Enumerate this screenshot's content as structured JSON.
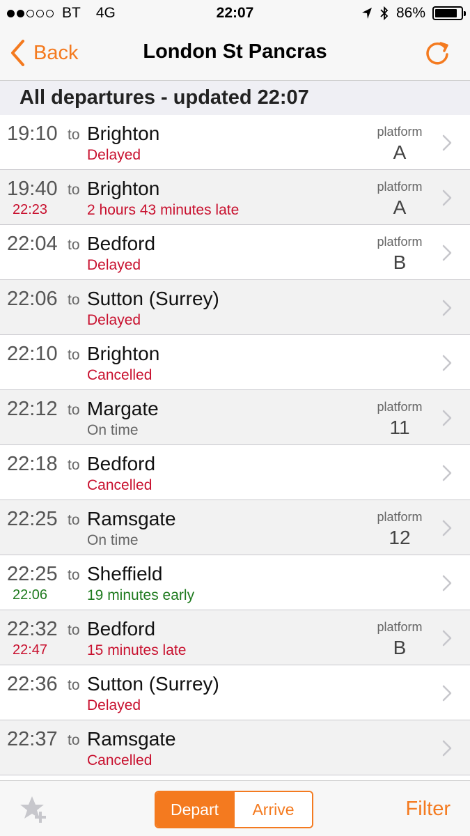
{
  "status_bar": {
    "carrier": "BT",
    "network": "4G",
    "time": "22:07",
    "battery": "86%",
    "battery_level": 0.86
  },
  "nav": {
    "back_label": "Back",
    "title": "London St Pancras"
  },
  "section_header": "All departures - updated 22:07",
  "colors": {
    "accent": "#f47a1f",
    "late": "#c8102e",
    "early": "#1e7a1e"
  },
  "departures": [
    {
      "time": "19:10",
      "to": "to",
      "destination": "Brighton",
      "expected": "",
      "status": "Delayed",
      "status_color": "red",
      "platform_label": "platform",
      "platform": "A"
    },
    {
      "time": "19:40",
      "to": "to",
      "destination": "Brighton",
      "expected": "22:23",
      "status": "2 hours 43 minutes late",
      "status_color": "red",
      "platform_label": "platform",
      "platform": "A"
    },
    {
      "time": "22:04",
      "to": "to",
      "destination": "Bedford",
      "expected": "",
      "status": "Delayed",
      "status_color": "red",
      "platform_label": "platform",
      "platform": "B"
    },
    {
      "time": "22:06",
      "to": "to",
      "destination": "Sutton (Surrey)",
      "expected": "",
      "status": "Delayed",
      "status_color": "red",
      "platform_label": "",
      "platform": ""
    },
    {
      "time": "22:10",
      "to": "to",
      "destination": "Brighton",
      "expected": "",
      "status": "Cancelled",
      "status_color": "red",
      "platform_label": "",
      "platform": ""
    },
    {
      "time": "22:12",
      "to": "to",
      "destination": "Margate",
      "expected": "",
      "status": "On time",
      "status_color": "grey",
      "platform_label": "platform",
      "platform": "11"
    },
    {
      "time": "22:18",
      "to": "to",
      "destination": "Bedford",
      "expected": "",
      "status": "Cancelled",
      "status_color": "red",
      "platform_label": "",
      "platform": ""
    },
    {
      "time": "22:25",
      "to": "to",
      "destination": "Ramsgate",
      "expected": "",
      "status": "On time",
      "status_color": "grey",
      "platform_label": "platform",
      "platform": "12"
    },
    {
      "time": "22:25",
      "to": "to",
      "destination": "Sheffield",
      "expected": "22:06",
      "status": "19 minutes early",
      "status_color": "green",
      "platform_label": "",
      "platform": ""
    },
    {
      "time": "22:32",
      "to": "to",
      "destination": "Bedford",
      "expected": "22:47",
      "status": "15 minutes late",
      "status_color": "red",
      "platform_label": "platform",
      "platform": "B"
    },
    {
      "time": "22:36",
      "to": "to",
      "destination": "Sutton (Surrey)",
      "expected": "",
      "status": "Delayed",
      "status_color": "red",
      "platform_label": "",
      "platform": ""
    },
    {
      "time": "22:37",
      "to": "to",
      "destination": "Ramsgate",
      "expected": "",
      "status": "Cancelled",
      "status_color": "red",
      "platform_label": "",
      "platform": ""
    }
  ],
  "toolbar": {
    "depart_label": "Depart",
    "arrive_label": "Arrive",
    "filter_label": "Filter",
    "active_segment": "Depart"
  },
  "icons": {
    "back": "chevron-left-icon",
    "refresh": "refresh-icon",
    "row_disclosure": "chevron-right-icon",
    "favourite": "star-add-icon",
    "location": "location-arrow-icon",
    "bluetooth": "bluetooth-icon"
  }
}
